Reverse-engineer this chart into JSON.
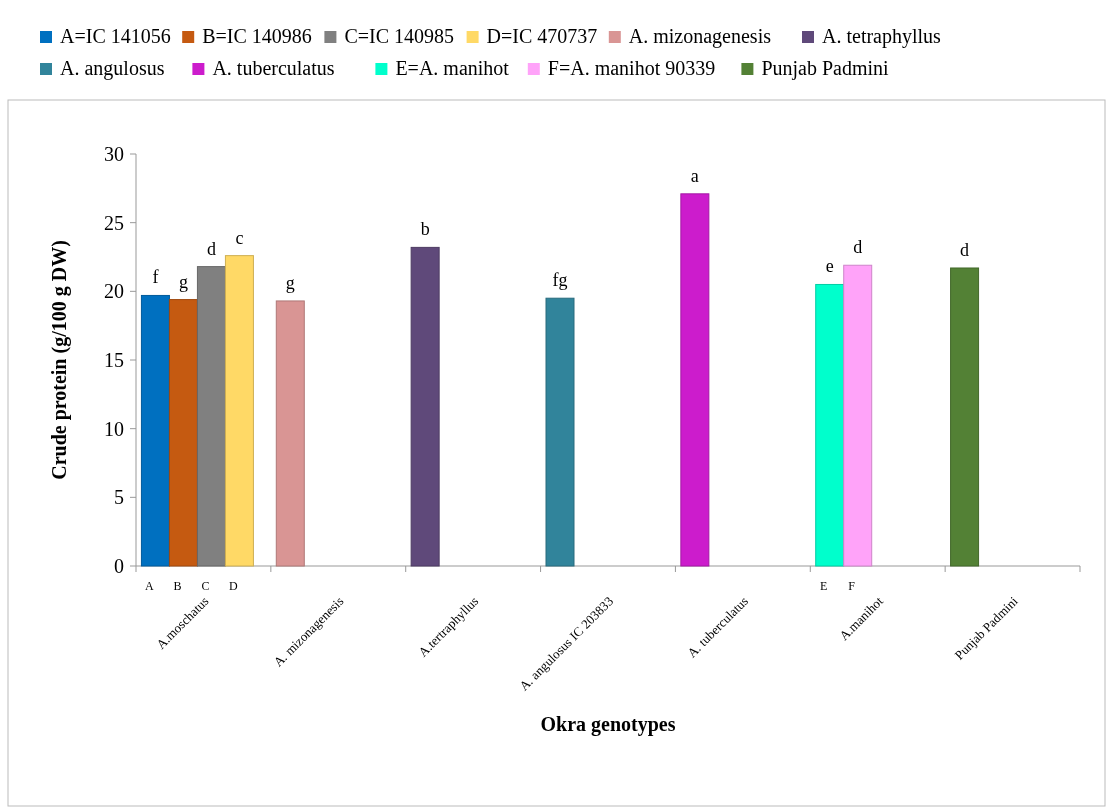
{
  "chart_data": {
    "type": "bar",
    "xlabel": "Okra genotypes",
    "ylabel": "Crude protein (g/100 g DW)",
    "categories": [
      "A.moschatus",
      "A. mizonagenesis",
      "A.tertraphyllus",
      "A. angulosus IC 203833",
      "A. tuberculatus",
      "A.manihot",
      "Punjab Padmini"
    ],
    "series": [
      {
        "name": "A=IC 141056",
        "color": "#0070c0",
        "values": [
          19.7,
          null,
          null,
          null,
          null,
          null,
          null
        ],
        "value_labels": [
          "f",
          null,
          null,
          null,
          null,
          null,
          null
        ]
      },
      {
        "name": "B=IC 140986",
        "color": "#c55a11",
        "values": [
          19.4,
          null,
          null,
          null,
          null,
          null,
          null
        ],
        "value_labels": [
          "g",
          null,
          null,
          null,
          null,
          null,
          null
        ]
      },
      {
        "name": "C=IC 140985",
        "color": "#808080",
        "values": [
          21.8,
          null,
          null,
          null,
          null,
          null,
          null
        ],
        "value_labels": [
          "d",
          null,
          null,
          null,
          null,
          null,
          null
        ]
      },
      {
        "name": "D=IC 470737",
        "color": "#ffd966",
        "values": [
          22.6,
          null,
          null,
          null,
          null,
          null,
          null
        ],
        "value_labels": [
          "c",
          null,
          null,
          null,
          null,
          null,
          null
        ]
      },
      {
        "name": "A. mizonagenesis",
        "color": "#d99594",
        "values": [
          null,
          19.3,
          null,
          null,
          null,
          null,
          null
        ],
        "value_labels": [
          null,
          "g",
          null,
          null,
          null,
          null,
          null
        ]
      },
      {
        "name": "A. tetraphyllus",
        "color": "#5f497a",
        "values": [
          null,
          null,
          23.2,
          null,
          null,
          null,
          null
        ],
        "value_labels": [
          null,
          null,
          "b",
          null,
          null,
          null,
          null
        ]
      },
      {
        "name": "A. angulosus",
        "color": "#31849b",
        "values": [
          null,
          null,
          null,
          19.5,
          null,
          null,
          null
        ],
        "value_labels": [
          null,
          null,
          null,
          "fg",
          null,
          null,
          null
        ]
      },
      {
        "name": "A. tuberculatus",
        "color": "#cc1ccc",
        "values": [
          null,
          null,
          null,
          null,
          27.1,
          null,
          null
        ],
        "value_labels": [
          null,
          null,
          null,
          null,
          "a",
          null,
          null
        ]
      },
      {
        "name": "E=A. manihot",
        "color": "#00ffcc",
        "values": [
          null,
          null,
          null,
          null,
          null,
          20.5,
          null
        ],
        "value_labels": [
          null,
          null,
          null,
          null,
          null,
          "e",
          null
        ]
      },
      {
        "name": "F=A. manihot 90339",
        "color": "#ffa3f9",
        "values": [
          null,
          null,
          null,
          null,
          null,
          21.9,
          null
        ],
        "value_labels": [
          null,
          null,
          null,
          null,
          null,
          "d",
          null
        ]
      },
      {
        "name": "Punjab Padmini",
        "color": "#538135",
        "values": [
          null,
          null,
          null,
          null,
          null,
          null,
          21.7
        ],
        "value_labels": [
          null,
          null,
          null,
          null,
          null,
          null,
          "d"
        ]
      }
    ],
    "annotations": [
      "A",
      "B",
      "C",
      "D",
      "E",
      "F"
    ],
    "ylim": [
      0,
      30
    ],
    "yticks": [
      0,
      5,
      10,
      15,
      20,
      25,
      30
    ],
    "legend": "top left"
  }
}
